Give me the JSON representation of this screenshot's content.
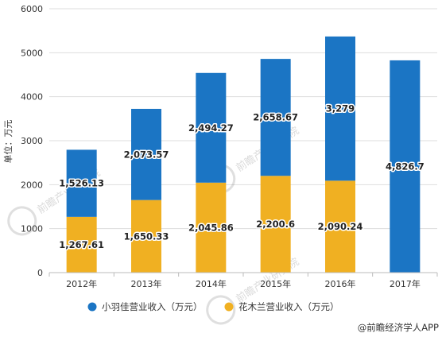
{
  "chart_data": {
    "type": "bar",
    "stacked": true,
    "categories": [
      "2012年",
      "2013年",
      "2014年",
      "2015年",
      "2016年",
      "2017年"
    ],
    "series": [
      {
        "name": "小羽佳营业收入（万元）",
        "color": "#1b75c4",
        "values": [
          1526.13,
          2073.57,
          2494.27,
          2658.67,
          3279,
          4826.7
        ],
        "labels": [
          "1,526.13",
          "2,073.57",
          "2,494.27",
          "2,658.67",
          "3,279",
          "4,826.7"
        ]
      },
      {
        "name": "花木兰营业收入（万元）",
        "color": "#f0b022",
        "values": [
          1267.61,
          1650.33,
          2045.86,
          2200.6,
          2090.24,
          null
        ],
        "labels": [
          "1,267.61",
          "1,650.33",
          "2,045.86",
          "2,200.6",
          "2,090.24",
          ""
        ]
      }
    ],
    "stack_order_bottom_to_top": [
      "花木兰营业收入（万元）",
      "小羽佳营业收入（万元）"
    ],
    "ylabel": "单位：万元",
    "xlabel": "",
    "ylim": [
      0,
      6000
    ],
    "yticks": [
      "0",
      "1000",
      "2000",
      "3000",
      "4000",
      "5000",
      "6000"
    ],
    "grid": true,
    "legend_position": "bottom"
  },
  "watermark": {
    "text": "前瞻产业研究院"
  },
  "footer": {
    "credit": "@前瞻经济学人APP"
  }
}
